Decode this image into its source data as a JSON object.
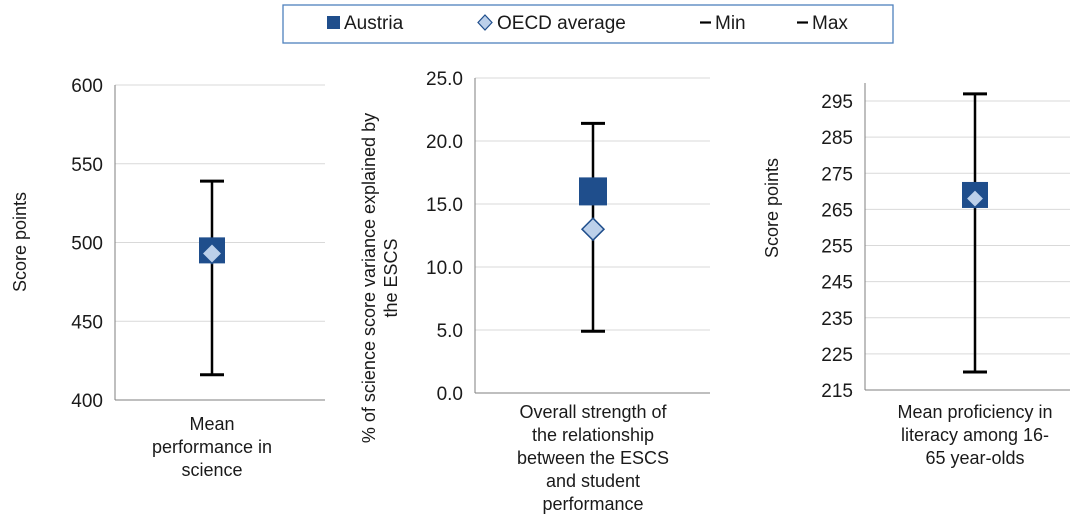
{
  "legend": {
    "austria": "Austria",
    "oecd": "OECD average",
    "min": "Min",
    "max": "Max"
  },
  "colors": {
    "austria": "#1f4e8c",
    "oecd": "#bcd0ea",
    "oecd_border": "#1f4e8c",
    "whisker": "#000000",
    "grid": "#d9d9d9",
    "axis": "#7f7f7f",
    "legend_border": "#4f81bd"
  },
  "chart_data": [
    {
      "type": "scatter",
      "ylabel": "Score points",
      "category": [
        "Mean",
        "performance in",
        "science"
      ],
      "ylim": [
        400,
        600
      ],
      "yticks": [
        "400",
        "450",
        "500",
        "550",
        "600"
      ],
      "grid": true,
      "austria": 495,
      "oecd_average": 493,
      "min": 416,
      "max": 539
    },
    {
      "type": "scatter",
      "ylabel": [
        "% of science score variance explained by",
        "the ESCS"
      ],
      "category": [
        "Overall strength of",
        "the relationship",
        "between the ESCS",
        "and student",
        "performance"
      ],
      "ylim": [
        0,
        25
      ],
      "yticks": [
        "0.0",
        "5.0",
        "10.0",
        "15.0",
        "20.0",
        "25.0"
      ],
      "grid": true,
      "austria": 16.0,
      "oecd_average": 13.0,
      "min": 4.9,
      "max": 21.4
    },
    {
      "type": "scatter",
      "ylabel": "Score points",
      "category": [
        "Mean proficiency in",
        "literacy among 16-",
        "65 year-olds"
      ],
      "ylim": [
        215,
        300
      ],
      "yticks": [
        "215",
        "225",
        "235",
        "245",
        "255",
        "265",
        "275",
        "285",
        "295"
      ],
      "grid": true,
      "austria": 269,
      "oecd_average": 268,
      "min": 220,
      "max": 297
    }
  ]
}
